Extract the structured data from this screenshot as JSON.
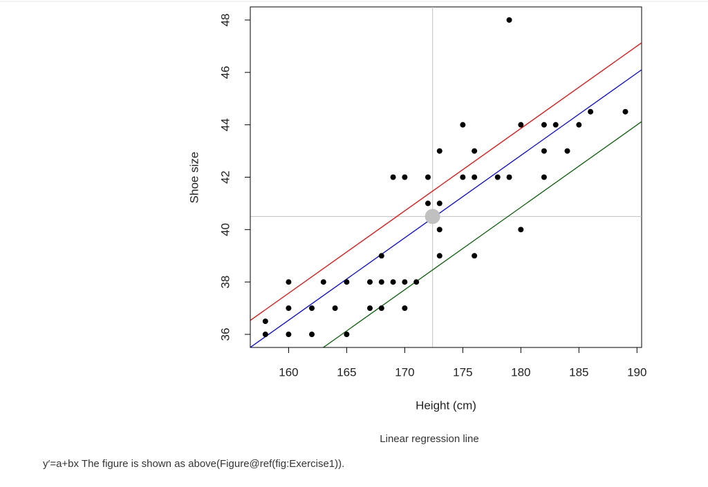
{
  "chart_data": {
    "type": "scatter",
    "xlabel": "Height (cm)",
    "ylabel": "Shoe size",
    "caption": "Linear regression line",
    "xlim": [
      156.7,
      190.4
    ],
    "ylim": [
      35.5,
      48.5
    ],
    "xticks": [
      160,
      165,
      170,
      175,
      180,
      185,
      190
    ],
    "yticks": [
      36,
      38,
      40,
      42,
      44,
      46,
      48
    ],
    "color": "#000000",
    "x": [
      158,
      158,
      160,
      160,
      160,
      162,
      162,
      163,
      164,
      165,
      165,
      167,
      167,
      168,
      168,
      168,
      169,
      169,
      170,
      170,
      170,
      171,
      172,
      172,
      173,
      173,
      173,
      173,
      175,
      175,
      176,
      176,
      176,
      178,
      179,
      179,
      180,
      180,
      182,
      182,
      182,
      183,
      184,
      185,
      186,
      189
    ],
    "values": [
      36.5,
      36,
      38,
      37,
      36,
      37,
      36,
      38,
      37,
      38,
      36,
      38,
      37,
      39,
      38,
      37,
      42,
      38,
      42,
      38,
      37,
      38,
      42,
      41,
      43,
      41,
      40,
      39,
      44,
      42,
      43,
      42,
      39,
      42,
      48,
      42,
      44,
      40,
      44,
      43,
      42,
      44,
      43,
      44,
      44.5,
      44.5
    ],
    "mean_point": {
      "x": 172.4,
      "y": 40.5,
      "color": "#c0c0c0"
    },
    "lines": [
      {
        "color": "#ff0000",
        "intercept": -12.75,
        "slope": 0.3145
      },
      {
        "color": "#0000ff",
        "intercept": -13.78,
        "slope": 0.3145
      },
      {
        "color": "#006400",
        "intercept": -15.76,
        "slope": 0.3145
      }
    ]
  },
  "text": "y′=a+bx The figure is shown as above(Figure@ref(fig:Exercise1))."
}
